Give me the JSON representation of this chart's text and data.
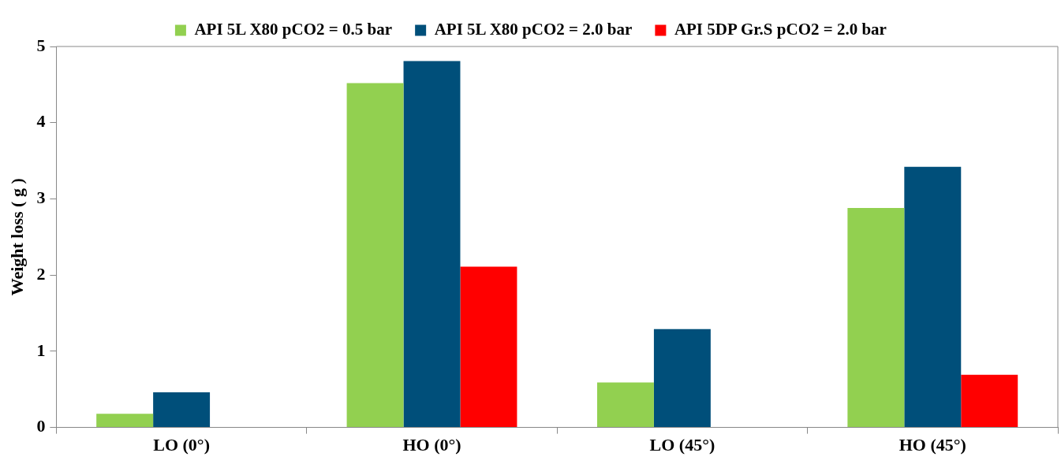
{
  "chart_data": {
    "type": "bar",
    "ylabel": "Weight loss ( g )",
    "categories": [
      "LO (0°)",
      "HO (0°)",
      "LO (45°)",
      "HO (45°)"
    ],
    "series": [
      {
        "name": "API 5L X80 pCO2 = 0.5 bar",
        "color": "#92d050",
        "values": [
          0.18,
          4.52,
          0.59,
          2.88
        ]
      },
      {
        "name": "API 5L X80 pCO2 = 2.0 bar",
        "color": "#004f7a",
        "values": [
          0.46,
          4.81,
          1.29,
          3.42
        ]
      },
      {
        "name": "API 5DP Gr.S pCO2 = 2.0 bar",
        "color": "#ff0000",
        "values": [
          null,
          2.11,
          null,
          0.69
        ]
      }
    ],
    "ylim": [
      0,
      5
    ],
    "yticks": [
      0,
      1,
      2,
      3,
      4,
      5
    ],
    "grid": false,
    "legend": "top"
  }
}
